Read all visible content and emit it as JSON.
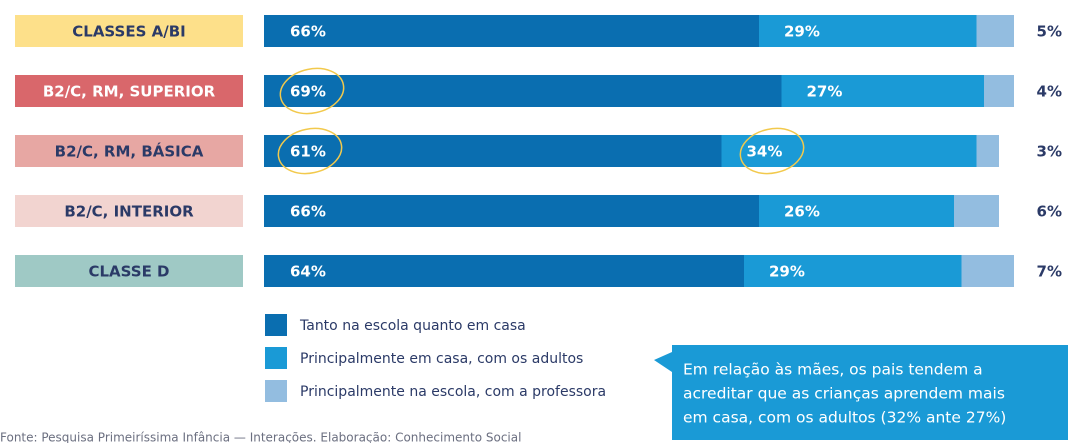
{
  "chart_data": {
    "type": "stacked-barh",
    "categories": [
      "CLASSES A/BI",
      "B2/C, RM, SUPERIOR",
      "B2/C, RM, BÁSICA",
      "B2/C, INTERIOR",
      "CLASSE D"
    ],
    "category_colors": [
      "#fde08a",
      "#d9676b",
      "#e7a7a3",
      "#f2d4d0",
      "#9fc9c5"
    ],
    "category_text_colors": [
      "#2b3a67",
      "#ffffff",
      "#2b3a67",
      "#2b3a67",
      "#2b3a67"
    ],
    "xlim": [
      0,
      100
    ],
    "series": [
      {
        "name": "Tanto na escola quanto em casa",
        "color": "#0a6eb0",
        "values": [
          66,
          69,
          61,
          66,
          64
        ],
        "value_labels": [
          "66%",
          "69%",
          "61%",
          "66%",
          "64%"
        ]
      },
      {
        "name": "Principalmente em casa, com os adultos",
        "color": "#1a9ad6",
        "values": [
          29,
          27,
          34,
          26,
          29
        ],
        "value_labels": [
          "29%",
          "27%",
          "34%",
          "26%",
          "29%"
        ]
      },
      {
        "name": "Principalmente na escola, com a professora",
        "color": "#93bde0",
        "values": [
          5,
          4,
          3,
          6,
          7
        ],
        "value_labels": [
          "5%",
          "4%",
          "3%",
          "6%",
          "7%"
        ]
      }
    ],
    "annotation": [
      "Em relação às mães, os pais tendem a",
      "acreditar que as crianças aprendem mais",
      "em casa, com os adultos (32% ante 27%)"
    ],
    "source": "Fonte: Pesquisa Primeiríssima Infância — Interações. Elaboração: Conhecimento Social"
  }
}
